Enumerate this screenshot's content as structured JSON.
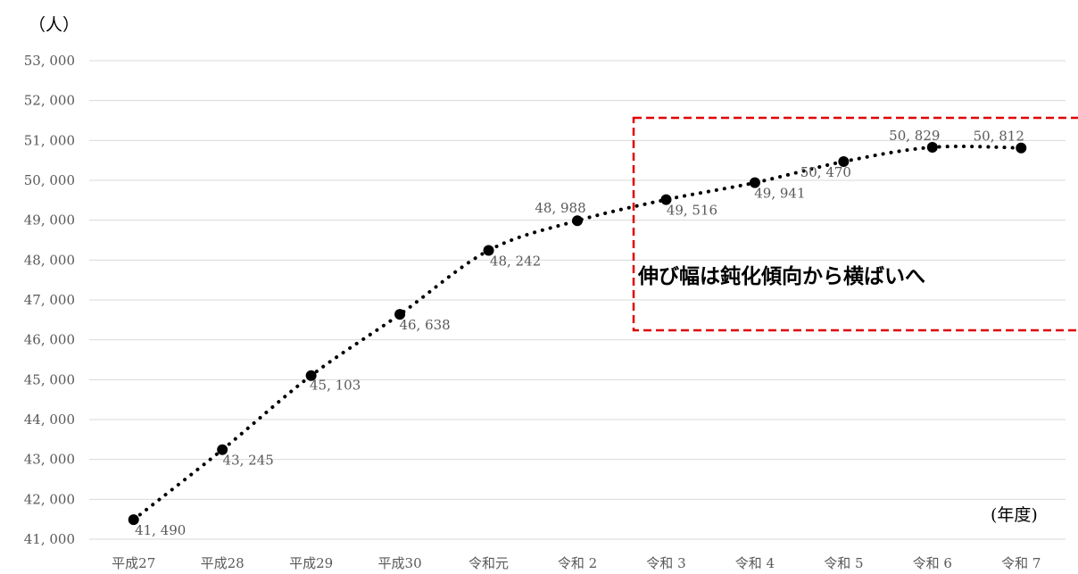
{
  "chart_data": {
    "type": "line",
    "ylabel": "（人）",
    "xlabel": "(年度)",
    "categories": [
      "平成27",
      "平成28",
      "平成29",
      "平成30",
      "令和元",
      "令和 2",
      "令和 3",
      "令和 4",
      "令和 5",
      "令和 6",
      "令和 7"
    ],
    "series": [
      {
        "values": [
          41490,
          43245,
          45103,
          46638,
          48242,
          48988,
          49516,
          49941,
          50470,
          50829,
          50812
        ],
        "data_labels": [
          "41, 490",
          "43, 245",
          "45, 103",
          "46, 638",
          "48, 242",
          "48, 988",
          "49, 516",
          "49, 941",
          "50, 470",
          "50, 829",
          "50, 812"
        ]
      }
    ],
    "ylim": [
      41000,
      53000
    ],
    "yticks": [
      41000,
      42000,
      43000,
      44000,
      45000,
      46000,
      47000,
      48000,
      49000,
      50000,
      51000,
      52000,
      53000
    ],
    "ytick_labels": [
      "41, 000",
      "42, 000",
      "43, 000",
      "44, 000",
      "45, 000",
      "46, 000",
      "47, 000",
      "48, 000",
      "49, 000",
      "50, 000",
      "51, 000",
      "52, 000",
      "53, 000"
    ],
    "grid": true,
    "line_style": "dotted",
    "annotation": {
      "text": "伸び幅は鈍化傾向から横ばいへ",
      "box_color": "#e00000",
      "box_style": "dashed"
    },
    "colors": {
      "line": "#000000",
      "grid": "#d9d9d9",
      "tick_text": "#595959"
    }
  }
}
